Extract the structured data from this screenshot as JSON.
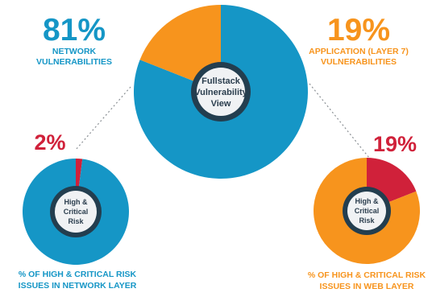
{
  "colors": {
    "network_blue": "#1596c6",
    "application_orange": "#f7941d",
    "critical_red": "#d0213a",
    "hub_ring": "#233e4f",
    "hub_fill": "#f0f2f4",
    "hub_text": "#2b3e4e",
    "connector": "#8a8f94",
    "background": "#ffffff"
  },
  "chart_data": [
    {
      "type": "pie",
      "id": "main",
      "center_label": [
        "Fullstack",
        "Vulnerability",
        "View"
      ],
      "slices": [
        {
          "name": "NETWORK VULNERABILITIES",
          "value": 81,
          "label": "81%",
          "color": "#1596c6",
          "caption": [
            "NETWORK",
            "VULNERABILITIES"
          ]
        },
        {
          "name": "APPLICATION (LAYER 7) VULNERABILITIES",
          "value": 19,
          "label": "19%",
          "color": "#f7941d",
          "caption": [
            "APPLICATION (LAYER 7)",
            "VULNERABILITIES"
          ]
        }
      ]
    },
    {
      "type": "pie",
      "id": "network",
      "value_label": "2%",
      "center_label": [
        "High &",
        "Critical",
        "Risk"
      ],
      "caption": [
        "% OF HIGH & CRITICAL RISK",
        "ISSUES IN NETWORK LAYER"
      ],
      "slices": [
        {
          "value": 2,
          "color": "#d0213a"
        },
        {
          "value": 98,
          "color": "#1596c6"
        }
      ]
    },
    {
      "type": "pie",
      "id": "web",
      "value_label": "19%",
      "center_label": [
        "High &",
        "Critical",
        "Risk"
      ],
      "caption": [
        "% OF HIGH & CRITICAL RISK",
        "ISSUES IN WEB LAYER"
      ],
      "slices": [
        {
          "value": 19,
          "color": "#d0213a"
        },
        {
          "value": 81,
          "color": "#f7941d"
        }
      ]
    }
  ]
}
